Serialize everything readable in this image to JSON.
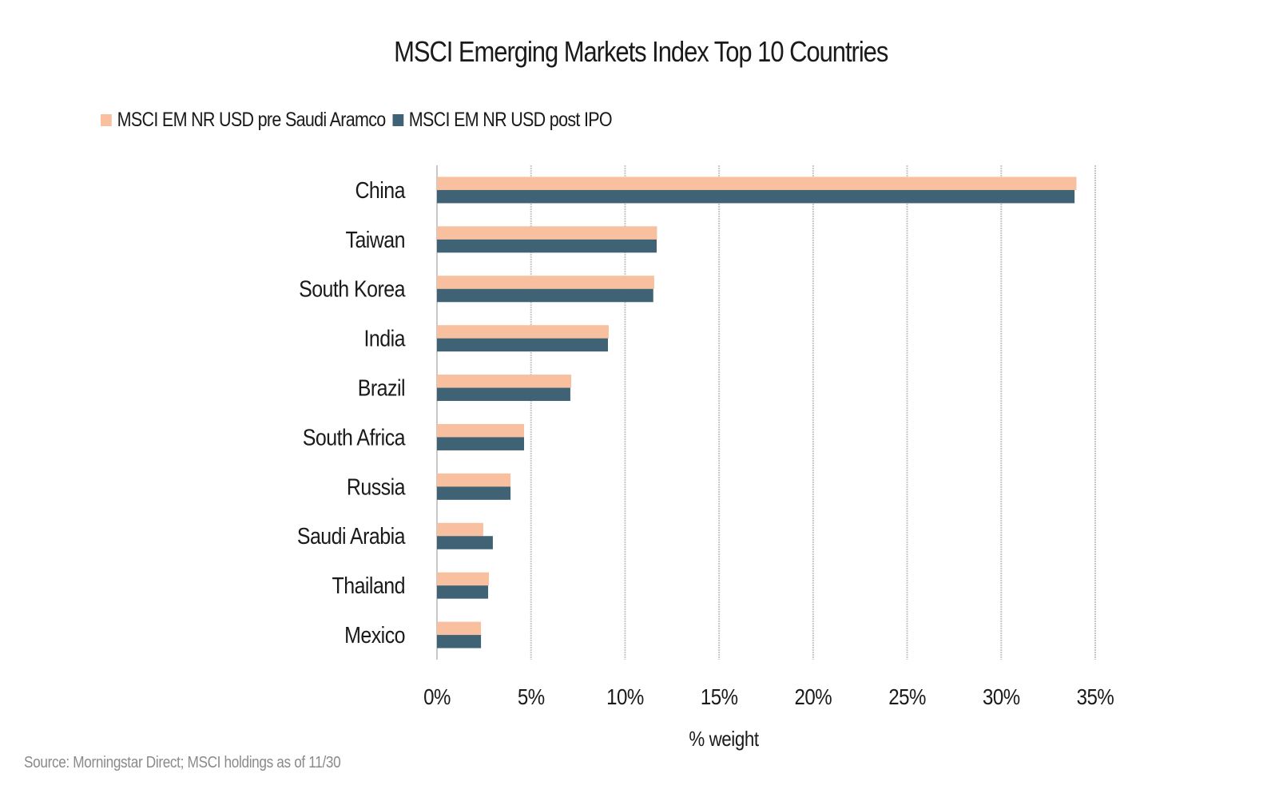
{
  "chart_data": {
    "type": "bar",
    "orientation": "horizontal",
    "title": "MSCI Emerging Markets Index Top 10 Countries",
    "xlabel": "% weight",
    "ylabel": "",
    "xlim": [
      0,
      35
    ],
    "x_ticks": [
      0,
      5,
      10,
      15,
      20,
      25,
      30,
      35
    ],
    "x_tick_labels": [
      "0%",
      "5%",
      "10%",
      "15%",
      "20%",
      "25%",
      "30%",
      "35%"
    ],
    "grid": "vertical",
    "legend_position": "top-left",
    "categories": [
      "China",
      "Taiwan",
      "South Korea",
      "India",
      "Brazil",
      "South Africa",
      "Russia",
      "Saudi Arabia",
      "Thailand",
      "Mexico"
    ],
    "series": [
      {
        "name": "MSCI EM NR USD pre Saudi Aramco",
        "color": "#F9C09F",
        "values": [
          34.0,
          11.7,
          11.55,
          9.13,
          7.14,
          4.63,
          3.91,
          2.46,
          2.76,
          2.34
        ]
      },
      {
        "name": "MSCI EM NR USD post IPO",
        "color": "#3F6274",
        "values": [
          33.9,
          11.68,
          11.5,
          9.09,
          7.09,
          4.63,
          3.91,
          2.97,
          2.72,
          2.34
        ]
      }
    ],
    "source": "Source: Morningstar Direct; MSCI holdings as of 11/30"
  },
  "colors": {
    "gridline": "#C8C8C8",
    "text": "#1a1a1a",
    "source_text": "#8a8a8a"
  }
}
